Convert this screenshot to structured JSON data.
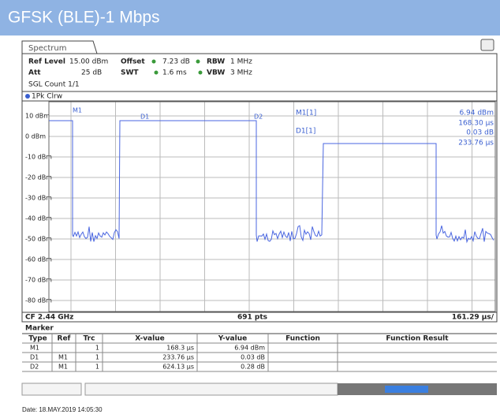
{
  "header": {
    "title": "GFSK (BLE)-1 Mbps"
  },
  "tab": "Spectrum",
  "settings": {
    "row1": [
      "Ref Level",
      "15.00 dBm",
      "Offset",
      "7.23 dB",
      "RBW",
      "1 MHz"
    ],
    "row2": [
      "Att",
      "25 dB",
      "SWT",
      "1.6 ms",
      "VBW",
      "3 MHz"
    ],
    "row3": "SGL Count 1/1"
  },
  "trace_label": "1Pk Clrw",
  "y_labels": [
    "10 dBm",
    "0 dBm",
    "-10 dBm",
    "-20 dBm",
    "-30 dBm",
    "-40 dBm",
    "-50 dBm",
    "-60 dBm",
    "-70 dBm",
    "-80 dBm"
  ],
  "plot_markers": [
    "M1",
    "D1",
    "D2"
  ],
  "readout": {
    "m1": "M1[1]",
    "m1_y": "6.94 dBm",
    "m1_x": "168.30 µs",
    "d1": "D1[1]",
    "d1_y": "0.03 dB",
    "d1_x": "233.76 µs"
  },
  "footer_bar": {
    "cf": "CF 2.44 GHz",
    "pts": "691 pts",
    "span": "161.29 µs/"
  },
  "marker_table": {
    "title": "Marker",
    "columns": [
      "Type",
      "Ref",
      "Trc",
      "X-value",
      "Y-value",
      "Function",
      "Function Result"
    ],
    "rows": [
      [
        "M1",
        "",
        "1",
        "168.3 µs",
        "6.94 dBm",
        "",
        ""
      ],
      [
        "D1",
        "M1",
        "1",
        "233.76 µs",
        "0.03 dB",
        "",
        ""
      ],
      [
        "D2",
        "M1",
        "1",
        "624.13 µs",
        "0.28 dB",
        "",
        ""
      ]
    ]
  },
  "date": "Date: 18.MAY.2019  14:05:30"
}
